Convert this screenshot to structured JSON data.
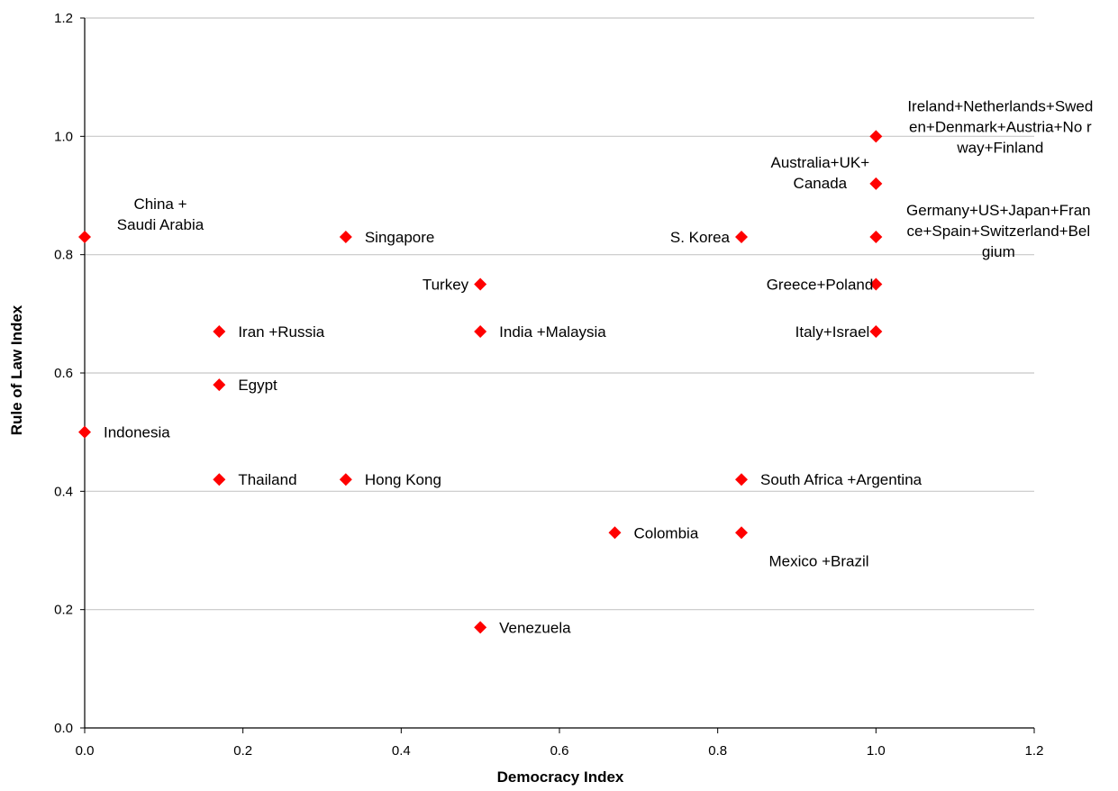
{
  "chart_data": {
    "type": "scatter",
    "title": "",
    "xlabel": "Democracy Index",
    "ylabel": "Rule of Law Index",
    "xlim": [
      0,
      1.2
    ],
    "ylim": [
      0,
      1.2
    ],
    "x_ticks": [
      "0.0",
      "0.2",
      "0.4",
      "0.6",
      "0.8",
      "1.0",
      "1.2"
    ],
    "y_ticks": [
      "0.0",
      "0.2",
      "0.4",
      "0.6",
      "0.8",
      "1.0",
      "1.2"
    ],
    "grid": "horizontal",
    "legend": "none",
    "marker": "diamond",
    "marker_color": "#ff0000",
    "points": [
      {
        "x": 0.0,
        "y": 0.83,
        "label": [
          "China +",
          "Saudi Arabia"
        ]
      },
      {
        "x": 0.0,
        "y": 0.5,
        "label": [
          "Indonesia"
        ]
      },
      {
        "x": 0.17,
        "y": 0.67,
        "label": [
          "Iran +Russia"
        ]
      },
      {
        "x": 0.17,
        "y": 0.58,
        "label": [
          "Egypt"
        ]
      },
      {
        "x": 0.17,
        "y": 0.42,
        "label": [
          "Thailand"
        ]
      },
      {
        "x": 0.33,
        "y": 0.83,
        "label": [
          "Singapore"
        ]
      },
      {
        "x": 0.33,
        "y": 0.42,
        "label": [
          "Hong Kong"
        ]
      },
      {
        "x": 0.5,
        "y": 0.75,
        "label": [
          "Turkey"
        ]
      },
      {
        "x": 0.5,
        "y": 0.67,
        "label": [
          "India +Malaysia"
        ]
      },
      {
        "x": 0.5,
        "y": 0.17,
        "label": [
          "Venezuela"
        ]
      },
      {
        "x": 0.67,
        "y": 0.33,
        "label": [
          "Colombia"
        ]
      },
      {
        "x": 0.83,
        "y": 0.83,
        "label": [
          "S. Korea"
        ]
      },
      {
        "x": 0.83,
        "y": 0.42,
        "label": [
          "South Africa +Argentina"
        ]
      },
      {
        "x": 0.83,
        "y": 0.33,
        "label": [
          "Mexico +Brazil"
        ]
      },
      {
        "x": 1.0,
        "y": 1.0,
        "label": [
          "Ireland+Netherlands+Swed",
          "en+Denmark+Austria+No r",
          "way+Finland"
        ]
      },
      {
        "x": 1.0,
        "y": 0.92,
        "label": [
          "Australia+UK+",
          "Canada"
        ]
      },
      {
        "x": 1.0,
        "y": 0.83,
        "label": [
          "Germany+US+Japan+Fran",
          "ce+Spain+Switzerland+Bel",
          "gium"
        ]
      },
      {
        "x": 1.0,
        "y": 0.75,
        "label": [
          "Greece+Poland"
        ]
      },
      {
        "x": 1.0,
        "y": 0.67,
        "label": [
          "Italy+Israel"
        ]
      }
    ]
  }
}
